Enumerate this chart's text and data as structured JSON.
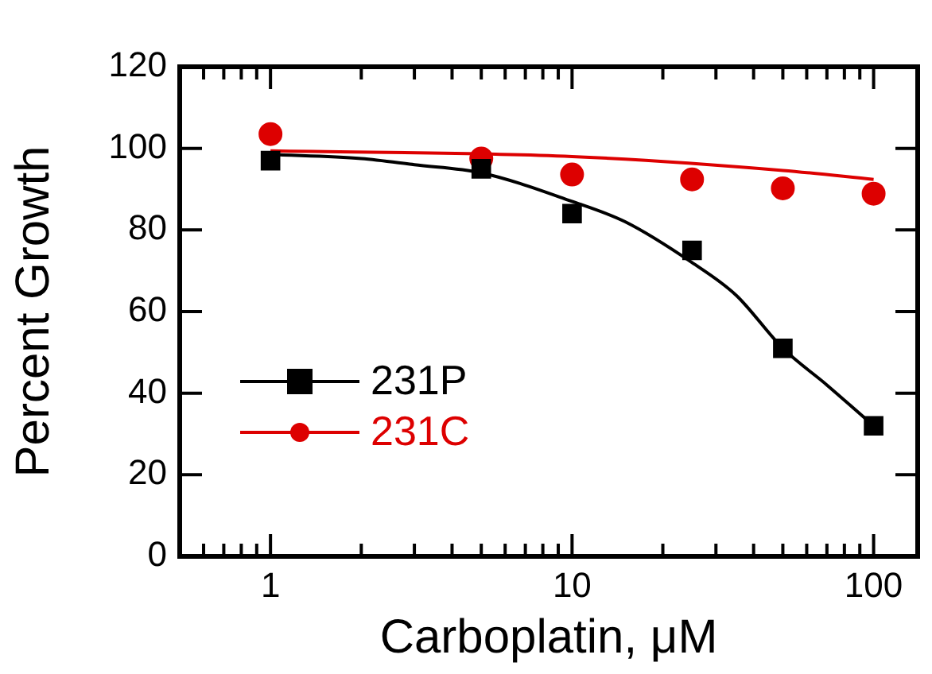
{
  "chart_data": {
    "type": "scatter",
    "xlabel": "Carboplatin, μM",
    "ylabel": "Percent Growth",
    "log": "x",
    "xlim": [
      0.5,
      140
    ],
    "ylim": [
      0,
      120
    ],
    "xticks": [
      {
        "value": 0.6,
        "label": null
      },
      {
        "value": 0.7,
        "label": null
      },
      {
        "value": 0.8,
        "label": null
      },
      {
        "value": 0.9,
        "label": null
      },
      1,
      {
        "value": 2,
        "label": null
      },
      {
        "value": 3,
        "label": null
      },
      {
        "value": 4,
        "label": null
      },
      {
        "value": 5,
        "label": null
      },
      {
        "value": 6,
        "label": null
      },
      {
        "value": 7,
        "label": null
      },
      {
        "value": 8,
        "label": null
      },
      {
        "value": 9,
        "label": null
      },
      10,
      {
        "value": 20,
        "label": null
      },
      {
        "value": 30,
        "label": null
      },
      {
        "value": 40,
        "label": null
      },
      {
        "value": 50,
        "label": null
      },
      {
        "value": 60,
        "label": null
      },
      {
        "value": 70,
        "label": null
      },
      {
        "value": 80,
        "label": null
      },
      {
        "value": 90,
        "label": null
      },
      100
    ],
    "yticks": [
      0,
      20,
      40,
      60,
      80,
      100,
      120
    ],
    "grid": false,
    "legend": "bottom left",
    "series": [
      {
        "name": "231P",
        "marker": "square",
        "color": "#000000",
        "x": [
          1,
          5,
          10,
          25,
          50,
          100
        ],
        "values": [
          97,
          95,
          84,
          75,
          51,
          32
        ]
      },
      {
        "name": "231C",
        "marker": "circle",
        "color": "#dd0000",
        "x": [
          1,
          5,
          10,
          25,
          50,
          100
        ],
        "values": [
          103.5,
          97.5,
          93.6,
          92.4,
          90.2,
          88.9
        ]
      },
      {
        "type": "line",
        "marker": "none",
        "color": "#000000",
        "x": [
          1,
          2,
          3,
          5,
          10,
          15,
          25,
          35,
          50,
          70,
          100
        ],
        "values": [
          98.5,
          97.5,
          96,
          94,
          87,
          82,
          72,
          64,
          51,
          42,
          32
        ]
      },
      {
        "type": "line",
        "marker": "none",
        "color": "#dd0000",
        "x": [
          1,
          10,
          50,
          100
        ],
        "values": [
          99.4,
          98,
          94.6,
          92.4
        ]
      }
    ]
  }
}
